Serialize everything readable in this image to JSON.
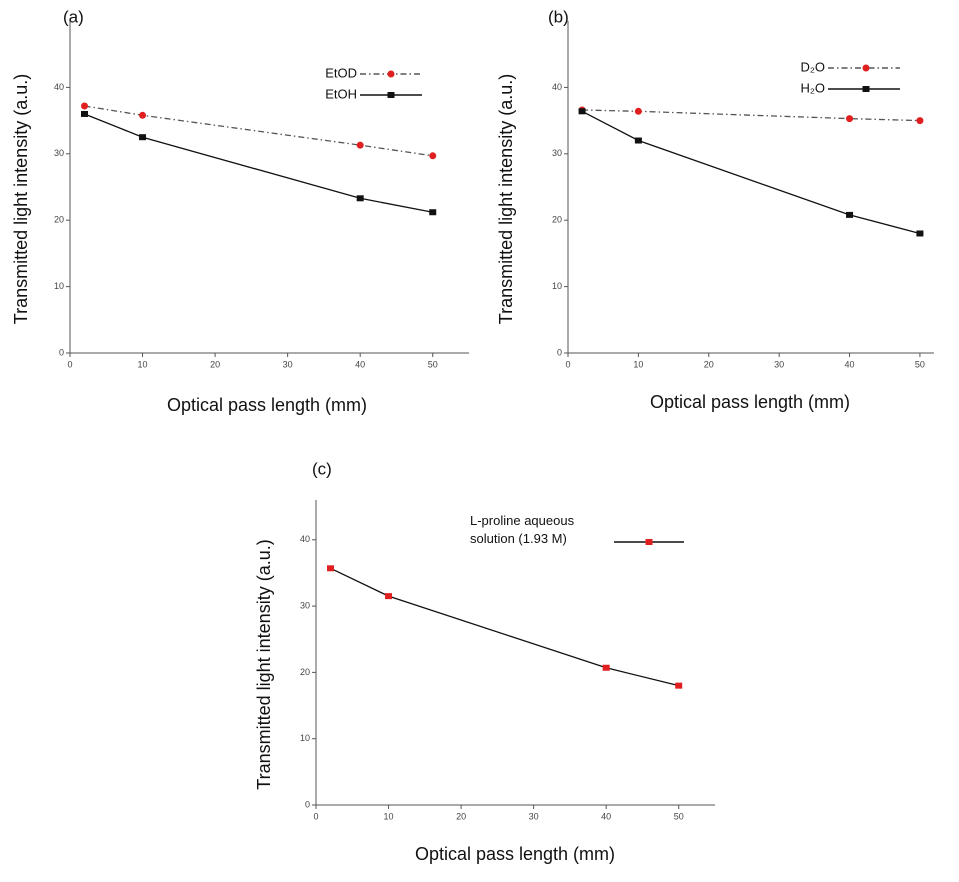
{
  "chart_data": [
    {
      "type": "line",
      "panel_label": "(a)",
      "x_label": "Optical pass length (mm)",
      "y_label": "Transmitted light intensity (a.u.)",
      "x": [
        2,
        10,
        40,
        50
      ],
      "xlim": [
        0,
        55
      ],
      "ylim": [
        0,
        50
      ],
      "xticks": [
        0,
        10,
        20,
        30,
        40,
        50
      ],
      "yticks": [
        0,
        10,
        20,
        30,
        40
      ],
      "series": [
        {
          "name": "EtOD",
          "color": "#e02020",
          "line_color": "#555555",
          "line_style": "dashdot",
          "marker": "circle",
          "values": [
            37.2,
            35.8,
            31.3,
            29.7
          ]
        },
        {
          "name": "EtOH",
          "color": "#111111",
          "line_color": "#111111",
          "line_style": "solid",
          "marker": "square",
          "values": [
            36.0,
            32.5,
            23.3,
            21.2
          ]
        }
      ]
    },
    {
      "type": "line",
      "panel_label": "(b)",
      "x_label": "Optical pass length (mm)",
      "y_label": "Transmitted light intensity (a.u.)",
      "x": [
        2,
        10,
        40,
        50
      ],
      "xlim": [
        0,
        52
      ],
      "ylim": [
        0,
        50
      ],
      "xticks": [
        0,
        10,
        20,
        30,
        40,
        50
      ],
      "yticks": [
        0,
        10,
        20,
        30,
        40
      ],
      "series": [
        {
          "name": "D₂O",
          "color": "#e02020",
          "line_color": "#555555",
          "line_style": "dashdot",
          "marker": "circle",
          "values": [
            36.6,
            36.4,
            35.3,
            35.0
          ]
        },
        {
          "name": "H₂O",
          "color": "#111111",
          "line_color": "#111111",
          "line_style": "solid",
          "marker": "square",
          "values": [
            36.4,
            32.0,
            20.8,
            18.0
          ]
        }
      ]
    },
    {
      "type": "line",
      "panel_label": "(c)",
      "x_label": "Optical pass length (mm)",
      "y_label": "Transmitted light intensity (a.u.)",
      "x": [
        2,
        10,
        40,
        50
      ],
      "xlim": [
        0,
        55
      ],
      "ylim": [
        0,
        46
      ],
      "xticks": [
        0,
        10,
        20,
        30,
        40,
        50
      ],
      "yticks": [
        0,
        10,
        20,
        30,
        40
      ],
      "series": [
        {
          "name": "L-proline aqueous solution (1.93 M)",
          "color": "#e02020",
          "line_color": "#111111",
          "line_style": "solid",
          "marker": "square",
          "values": [
            35.7,
            31.5,
            20.7,
            18.0
          ]
        }
      ]
    }
  ]
}
